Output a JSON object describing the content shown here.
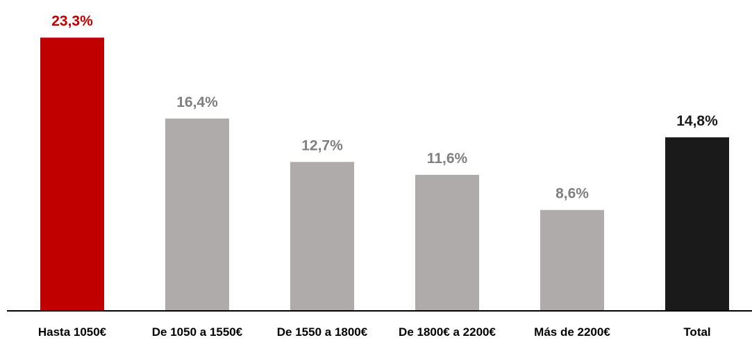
{
  "chart_data": {
    "type": "bar",
    "title": "",
    "xlabel": "",
    "ylabel": "",
    "categories": [
      "Hasta 1050€",
      "De 1050 a 1550€",
      "De 1550 a 1800€",
      "De 1800€ a 2200€",
      "Más de 2200€",
      "Total"
    ],
    "values": [
      23.3,
      16.4,
      12.7,
      11.6,
      8.6,
      14.8
    ],
    "value_labels": [
      "23,3%",
      "16,4%",
      "12,7%",
      "11,6%",
      "8,6%",
      "14,8%"
    ],
    "bar_colors": [
      "#C00000",
      "#AFABAB",
      "#AFABAB",
      "#AFABAB",
      "#AFABAB",
      "#1A1A1A"
    ],
    "label_colors": [
      "#C00000",
      "#7F7F7F",
      "#7F7F7F",
      "#7F7F7F",
      "#7F7F7F",
      "#1A1A1A"
    ],
    "ylim": [
      0,
      25
    ],
    "grid": false,
    "legend": "none"
  }
}
